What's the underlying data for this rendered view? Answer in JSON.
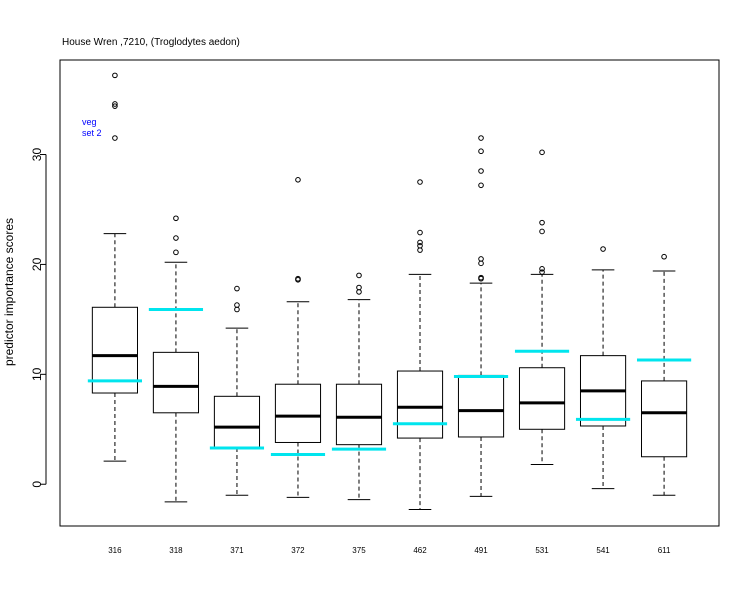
{
  "chart_data": {
    "type": "boxplot",
    "title": "House Wren ,7210, (Troglodytes aedon)",
    "ylabel": "predictor importance scores",
    "xlabel": "",
    "ylim": [
      -3.8,
      38.6
    ],
    "yticks": [
      0,
      10,
      20,
      30
    ],
    "legend": {
      "lines": [
        "veg",
        "set 2"
      ],
      "color": "#0000ff",
      "placement": "top-left"
    },
    "colors": {
      "box": "#000000",
      "median": "#000000",
      "marker": "#00e5ee"
    },
    "categories": [
      "316",
      "318",
      "371",
      "372",
      "375",
      "462",
      "491",
      "531",
      "541",
      "611"
    ],
    "boxes": [
      {
        "q1": 8.3,
        "median": 11.7,
        "q3": 16.1,
        "whisker_low": 2.1,
        "whisker_high": 22.8,
        "outliers": [
          31.5,
          34.4,
          34.6,
          37.2
        ],
        "marker": 9.4
      },
      {
        "q1": 6.5,
        "median": 8.9,
        "q3": 12.0,
        "whisker_low": -1.6,
        "whisker_high": 20.2,
        "outliers": [
          21.1,
          22.4,
          24.2
        ],
        "marker": 15.9
      },
      {
        "q1": 3.3,
        "median": 5.2,
        "q3": 8.0,
        "whisker_low": -1.0,
        "whisker_high": 14.2,
        "outliers": [
          15.9,
          16.3,
          17.8
        ],
        "marker": 3.3
      },
      {
        "q1": 3.8,
        "median": 6.2,
        "q3": 9.1,
        "whisker_low": -1.2,
        "whisker_high": 16.6,
        "outliers": [
          18.6,
          18.7,
          27.7
        ],
        "marker": 2.7
      },
      {
        "q1": 3.6,
        "median": 6.1,
        "q3": 9.1,
        "whisker_low": -1.4,
        "whisker_high": 16.8,
        "outliers": [
          17.5,
          17.9,
          19.0
        ],
        "marker": 3.2
      },
      {
        "q1": 4.2,
        "median": 7.0,
        "q3": 10.3,
        "whisker_low": -2.3,
        "whisker_high": 19.1,
        "outliers": [
          21.3,
          21.7,
          22.0,
          22.9,
          27.5
        ],
        "marker": 5.5
      },
      {
        "q1": 4.3,
        "median": 6.7,
        "q3": 9.9,
        "whisker_low": -1.1,
        "whisker_high": 18.3,
        "outliers": [
          18.7,
          18.8,
          20.1,
          20.5,
          27.2,
          28.5,
          30.3,
          31.5
        ],
        "marker": 9.8
      },
      {
        "q1": 5.0,
        "median": 7.4,
        "q3": 10.6,
        "whisker_low": 1.8,
        "whisker_high": 19.1,
        "outliers": [
          19.3,
          19.6,
          23.0,
          23.8,
          30.2
        ],
        "marker": 12.1
      },
      {
        "q1": 5.3,
        "median": 8.5,
        "q3": 11.7,
        "whisker_low": -0.4,
        "whisker_high": 19.5,
        "outliers": [
          21.4
        ],
        "marker": 5.9
      },
      {
        "q1": 2.5,
        "median": 6.5,
        "q3": 9.4,
        "whisker_low": -1.0,
        "whisker_high": 19.4,
        "outliers": [
          20.7
        ],
        "marker": 11.3
      }
    ]
  }
}
